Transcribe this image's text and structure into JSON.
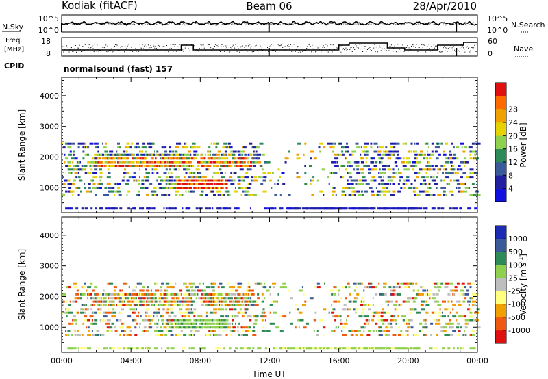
{
  "header": {
    "station": "Kodiak (fitACF)",
    "beam": "Beam 06",
    "date": "28/Apr/2010"
  },
  "top_panels": {
    "noise": {
      "left_label": "N.Sky",
      "left_ticks": [
        "10^5",
        "10^0"
      ],
      "right_label": "N.Search",
      "right_ticks": [
        "10^5",
        "10^0"
      ]
    },
    "frequency": {
      "left_label_1": "Freq.",
      "left_label_2": "[MHz]",
      "left_ticks": [
        "18",
        "8"
      ],
      "right_label": "Nave",
      "right_ticks": [
        "60",
        "0"
      ]
    },
    "cpid": {
      "label": "CPID",
      "text": "normalsound (fast) 157"
    }
  },
  "colors": {
    "power": [
      "#1010e0",
      "#2020a0",
      "#3a5a9a",
      "#2e8b57",
      "#8fd14f",
      "#e6d200",
      "#f0a000",
      "#ff6a00",
      "#e01010"
    ],
    "velocity": [
      "#e01010",
      "#f05a10",
      "#f0a000",
      "#ffff80",
      "#bebebe",
      "#8fd14f",
      "#2e8b57",
      "#3a5a9a",
      "#1c2ab4"
    ]
  },
  "chart_data": [
    {
      "type": "heatmap",
      "name": "power",
      "ylabel": "Slant Range [km]",
      "yticks": [
        1000,
        2000,
        3000,
        4000
      ],
      "ylim": [
        180,
        4600
      ],
      "xlim_hours": [
        0,
        24
      ],
      "colorbar": {
        "label": "Power [dB]",
        "ticks": [
          "4",
          "8",
          "12",
          "16",
          "20",
          "24",
          "28"
        ],
        "range": [
          0,
          32
        ]
      },
      "gates_km": [
        320,
        750,
        870,
        990,
        1110,
        1230,
        1350,
        1470,
        1590,
        1710,
        1830,
        1950,
        2070,
        2190,
        2310,
        2430
      ]
    },
    {
      "type": "heatmap",
      "name": "velocity",
      "ylabel": "Slant Range [km]",
      "yticks": [
        1000,
        2000,
        3000,
        4000
      ],
      "ylim": [
        180,
        4600
      ],
      "xlim_hours": [
        0,
        24
      ],
      "xlabel": "Time UT",
      "xticks": [
        "00:00",
        "04:00",
        "08:00",
        "12:00",
        "16:00",
        "20:00",
        "00:00"
      ],
      "colorbar": {
        "label": "Velocity [m s",
        "label_sup": "-1",
        "label_end": "]",
        "ticks": [
          "1000",
          "500",
          "100",
          "25",
          "-25",
          "-100",
          "-500",
          "-1000"
        ]
      },
      "gates_km": [
        320,
        750,
        870,
        990,
        1110,
        1230,
        1350,
        1470,
        1590,
        1710,
        1830,
        1950,
        2070,
        2190,
        2310,
        2430
      ]
    }
  ]
}
